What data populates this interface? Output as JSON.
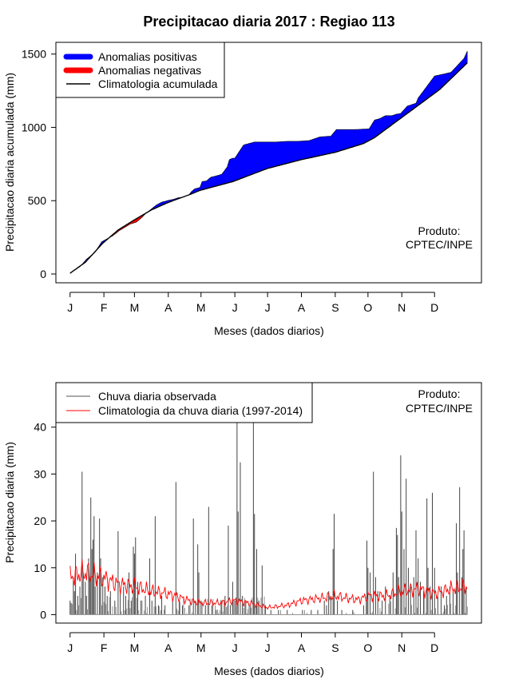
{
  "chart_data": [
    {
      "type": "area",
      "title": "Precipitacao diaria 2017 : Regiao 113",
      "xlabel": "Meses (dados diarios)",
      "ylabel": "Precipitacao diaria acumulada (mm)",
      "x_ticks": [
        "J",
        "F",
        "M",
        "A",
        "M",
        "J",
        "J",
        "A",
        "S",
        "O",
        "N",
        "D"
      ],
      "x_tick_days": [
        1,
        32,
        60,
        91,
        121,
        152,
        182,
        213,
        244,
        274,
        305,
        335
      ],
      "xlim": [
        -12,
        378
      ],
      "ylim": [
        -60,
        1580
      ],
      "y_ticks": [
        0,
        500,
        1000,
        1500
      ],
      "legend": {
        "position": "top-left",
        "entries": [
          {
            "label": "Anomalias positivas",
            "color": "#0000ff",
            "kind": "thick-line"
          },
          {
            "label": "Anomalias negativas",
            "color": "#ff0000",
            "kind": "thick-line"
          },
          {
            "label": "Climatologia acumulada",
            "color": "#000000",
            "kind": "line"
          }
        ]
      },
      "annotation": [
        "Produto:",
        "CPTEC/INPE"
      ],
      "climatology_days": [
        1,
        15,
        31,
        45,
        59,
        75,
        90,
        110,
        120,
        150,
        182,
        213,
        244,
        270,
        280,
        300,
        320,
        340,
        365
      ],
      "climatology_cum": [
        5,
        80,
        210,
        300,
        365,
        435,
        485,
        540,
        570,
        630,
        720,
        780,
        830,
        890,
        930,
        1040,
        1150,
        1260,
        1440
      ],
      "observed_days": [
        1,
        10,
        16,
        24,
        30,
        40,
        46,
        56,
        62,
        66,
        70,
        75,
        80,
        85,
        90,
        96,
        100,
        105,
        110,
        112,
        115,
        120,
        122,
        126,
        130,
        133,
        140,
        145,
        147,
        150,
        152,
        160,
        165,
        170,
        175,
        180,
        190,
        200,
        210,
        220,
        230,
        240,
        245,
        250,
        262,
        275,
        280,
        285,
        290,
        296,
        300,
        304,
        310,
        318,
        320,
        335,
        350,
        362,
        365
      ],
      "observed_cum": [
        5,
        50,
        100,
        150,
        220,
        260,
        295,
        340,
        355,
        380,
        410,
        440,
        470,
        490,
        500,
        510,
        520,
        525,
        540,
        560,
        580,
        590,
        630,
        635,
        660,
        665,
        680,
        730,
        780,
        790,
        790,
        880,
        890,
        900,
        900,
        900,
        900,
        905,
        905,
        910,
        935,
        940,
        985,
        985,
        985,
        990,
        1050,
        1060,
        1080,
        1080,
        1090,
        1095,
        1145,
        1165,
        1200,
        1350,
        1375,
        1470,
        1520
      ]
    },
    {
      "type": "line",
      "xlabel": "Meses (dados diarios)",
      "ylabel": "Precipitacao diaria (mm)",
      "x_ticks": [
        "J",
        "F",
        "M",
        "A",
        "M",
        "J",
        "J",
        "A",
        "S",
        "O",
        "N",
        "D"
      ],
      "x_tick_days": [
        1,
        32,
        60,
        91,
        121,
        152,
        182,
        213,
        244,
        274,
        305,
        335
      ],
      "xlim": [
        -12,
        378
      ],
      "ylim": [
        -1.8,
        49.5
      ],
      "y_ticks": [
        0,
        10,
        20,
        30,
        40
      ],
      "legend": {
        "position": "top-left",
        "entries": [
          {
            "label": "Chuva diaria observada",
            "color": "#555555",
            "kind": "line"
          },
          {
            "label": "Climatologia da chuva diaria (1997-2014)",
            "color": "#ff0000",
            "kind": "line"
          }
        ]
      },
      "annotation": [
        "Produto:",
        "CPTEC/INPE"
      ],
      "observed_peaks": [
        {
          "day": 1,
          "value": 3
        },
        {
          "day": 2,
          "value": 2.5
        },
        {
          "day": 4,
          "value": 8
        },
        {
          "day": 5,
          "value": 5
        },
        {
          "day": 6,
          "value": 13
        },
        {
          "day": 8,
          "value": 4
        },
        {
          "day": 10,
          "value": 6
        },
        {
          "day": 12,
          "value": 30.5
        },
        {
          "day": 13,
          "value": 9
        },
        {
          "day": 15,
          "value": 7
        },
        {
          "day": 16,
          "value": 4
        },
        {
          "day": 18,
          "value": 12
        },
        {
          "day": 19,
          "value": 8
        },
        {
          "day": 20,
          "value": 25
        },
        {
          "day": 21,
          "value": 14
        },
        {
          "day": 22,
          "value": 16
        },
        {
          "day": 23,
          "value": 21
        },
        {
          "day": 24,
          "value": 6
        },
        {
          "day": 26,
          "value": 9
        },
        {
          "day": 28,
          "value": 20.5
        },
        {
          "day": 29,
          "value": 12
        },
        {
          "day": 31,
          "value": 8
        },
        {
          "day": 33,
          "value": 6
        },
        {
          "day": 35,
          "value": 4
        },
        {
          "day": 38,
          "value": 5
        },
        {
          "day": 42,
          "value": 3
        },
        {
          "day": 45,
          "value": 17.8
        },
        {
          "day": 47,
          "value": 5
        },
        {
          "day": 50,
          "value": 6
        },
        {
          "day": 52,
          "value": 4
        },
        {
          "day": 55,
          "value": 9
        },
        {
          "day": 57,
          "value": 3
        },
        {
          "day": 59,
          "value": 14.5
        },
        {
          "day": 60,
          "value": 13
        },
        {
          "day": 61,
          "value": 16.5
        },
        {
          "day": 63,
          "value": 7
        },
        {
          "day": 66,
          "value": 3
        },
        {
          "day": 70,
          "value": 4
        },
        {
          "day": 74,
          "value": 12
        },
        {
          "day": 76,
          "value": 3
        },
        {
          "day": 79,
          "value": 21
        },
        {
          "day": 82,
          "value": 2
        },
        {
          "day": 85,
          "value": 4
        },
        {
          "day": 88,
          "value": 2
        },
        {
          "day": 95,
          "value": 3
        },
        {
          "day": 98,
          "value": 28.3
        },
        {
          "day": 101,
          "value": 3
        },
        {
          "day": 104,
          "value": 2
        },
        {
          "day": 110,
          "value": 2
        },
        {
          "day": 114,
          "value": 20.5
        },
        {
          "day": 116,
          "value": 3
        },
        {
          "day": 118,
          "value": 15
        },
        {
          "day": 119,
          "value": 9
        },
        {
          "day": 121,
          "value": 3
        },
        {
          "day": 125,
          "value": 2
        },
        {
          "day": 128,
          "value": 23
        },
        {
          "day": 131,
          "value": 2
        },
        {
          "day": 135,
          "value": 1
        },
        {
          "day": 140,
          "value": 3
        },
        {
          "day": 143,
          "value": 4
        },
        {
          "day": 146,
          "value": 19
        },
        {
          "day": 148,
          "value": 2
        },
        {
          "day": 150,
          "value": 7
        },
        {
          "day": 152,
          "value": 3
        },
        {
          "day": 154,
          "value": 41.5
        },
        {
          "day": 155,
          "value": 22
        },
        {
          "day": 157,
          "value": 32.5
        },
        {
          "day": 159,
          "value": 4
        },
        {
          "day": 162,
          "value": 3
        },
        {
          "day": 166,
          "value": 2
        },
        {
          "day": 169,
          "value": 41.5
        },
        {
          "day": 170,
          "value": 21.5
        },
        {
          "day": 172,
          "value": 14
        },
        {
          "day": 174,
          "value": 3
        },
        {
          "day": 177,
          "value": 10.5
        },
        {
          "day": 180,
          "value": 2
        },
        {
          "day": 185,
          "value": 1
        },
        {
          "day": 192,
          "value": 1
        },
        {
          "day": 200,
          "value": 1
        },
        {
          "day": 214,
          "value": 1
        },
        {
          "day": 222,
          "value": 1
        },
        {
          "day": 228,
          "value": 1
        },
        {
          "day": 234,
          "value": 3
        },
        {
          "day": 236,
          "value": 2
        },
        {
          "day": 238,
          "value": 5
        },
        {
          "day": 240,
          "value": 4
        },
        {
          "day": 242,
          "value": 14
        },
        {
          "day": 243,
          "value": 21.5
        },
        {
          "day": 246,
          "value": 3
        },
        {
          "day": 250,
          "value": 1
        },
        {
          "day": 260,
          "value": 1
        },
        {
          "day": 270,
          "value": 2
        },
        {
          "day": 273,
          "value": 15.8
        },
        {
          "day": 274,
          "value": 10
        },
        {
          "day": 276,
          "value": 9
        },
        {
          "day": 279,
          "value": 30.5
        },
        {
          "day": 281,
          "value": 8
        },
        {
          "day": 283,
          "value": 5
        },
        {
          "day": 287,
          "value": 3
        },
        {
          "day": 290,
          "value": 6
        },
        {
          "day": 294,
          "value": 4
        },
        {
          "day": 297,
          "value": 9
        },
        {
          "day": 300,
          "value": 18.5
        },
        {
          "day": 301,
          "value": 17
        },
        {
          "day": 302,
          "value": 8
        },
        {
          "day": 304,
          "value": 34
        },
        {
          "day": 305,
          "value": 22
        },
        {
          "day": 307,
          "value": 14
        },
        {
          "day": 309,
          "value": 29
        },
        {
          "day": 311,
          "value": 10
        },
        {
          "day": 313,
          "value": 6
        },
        {
          "day": 316,
          "value": 8
        },
        {
          "day": 318,
          "value": 18
        },
        {
          "day": 320,
          "value": 12
        },
        {
          "day": 322,
          "value": 7
        },
        {
          "day": 325,
          "value": 5
        },
        {
          "day": 328,
          "value": 24.8
        },
        {
          "day": 329,
          "value": 10
        },
        {
          "day": 331,
          "value": 6
        },
        {
          "day": 333,
          "value": 26
        },
        {
          "day": 335,
          "value": 10
        },
        {
          "day": 338,
          "value": 4
        },
        {
          "day": 341,
          "value": 6
        },
        {
          "day": 344,
          "value": 2
        },
        {
          "day": 346,
          "value": 4
        },
        {
          "day": 349,
          "value": 6
        },
        {
          "day": 352,
          "value": 5
        },
        {
          "day": 355,
          "value": 19.5
        },
        {
          "day": 356,
          "value": 9
        },
        {
          "day": 358,
          "value": 27.2
        },
        {
          "day": 360,
          "value": 8
        },
        {
          "day": 361,
          "value": 14
        },
        {
          "day": 362,
          "value": 18
        },
        {
          "day": 364,
          "value": 6
        }
      ],
      "climatology_days": [
        1,
        15,
        30,
        45,
        60,
        75,
        90,
        100,
        110,
        120,
        130,
        140,
        150,
        165,
        182,
        200,
        213,
        230,
        244,
        255,
        265,
        274,
        290,
        305,
        320,
        335,
        350,
        365
      ],
      "climatology_values": [
        8,
        9,
        8,
        6.5,
        6,
        5,
        4.5,
        3.8,
        3,
        2.5,
        2.5,
        2.5,
        3,
        2.5,
        1.5,
        2,
        3,
        3.5,
        4,
        3.5,
        3.2,
        4,
        4,
        5,
        5.5,
        4.5,
        5.5,
        6
      ]
    }
  ]
}
